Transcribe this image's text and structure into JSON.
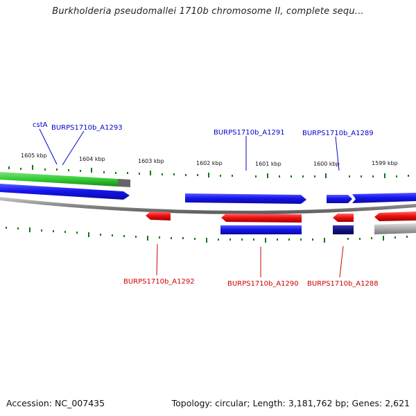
{
  "title": "Burkholderia pseudomallei 1710b chromosome II, complete sequ...",
  "footer": {
    "accession_label": "Accession: NC_007435",
    "info_label": "Topology: circular; Length: 3,181,762 bp; Genes: 2,621"
  },
  "colors": {
    "forward_gene": "#1111ee",
    "reverse_gene": "#ee1111",
    "highlight_gene": "#33cc33",
    "dark_gene": "#111188",
    "grey_gene": "#aaaaaa",
    "backbone": "#888888",
    "tick": "#117711",
    "forward_label": "#0000cc",
    "reverse_label": "#cc0000"
  },
  "ticks": [
    "1605 kbp",
    "1604 kbp",
    "1603 kbp",
    "1602 kbp",
    "1601 kbp",
    "1600 kbp",
    "1599 kbp"
  ],
  "labels": {
    "forward": [
      "cstA",
      "BURPS1710b_A1293",
      "BURPS1710b_A1291",
      "BURPS1710b_A1289"
    ],
    "reverse": [
      "BURPS1710b_A1292",
      "BURPS1710b_A1290",
      "BURPS1710b_A1288"
    ]
  }
}
